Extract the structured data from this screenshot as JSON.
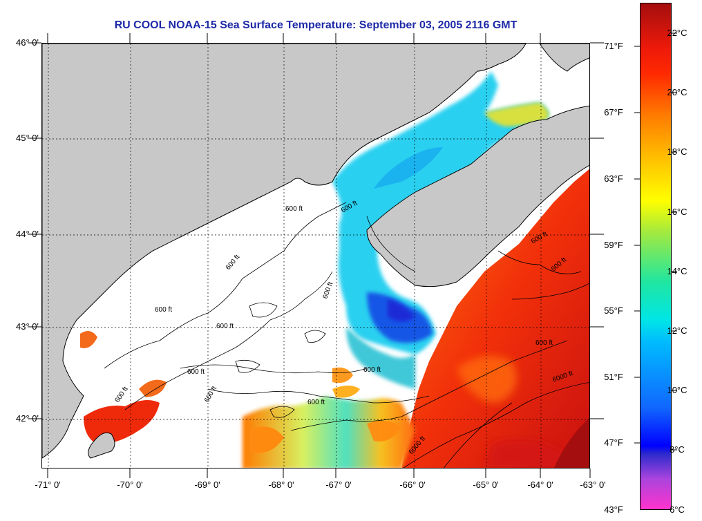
{
  "title": "RU COOL  NOAA-15  Sea Surface Temperature:  September 03, 2005 2116 GMT",
  "lat_labels": [
    "46° 0'",
    "45° 0'",
    "44° 0'",
    "43° 0'",
    "42° 0'"
  ],
  "lon_labels": [
    "-71° 0'",
    "-70° 0'",
    "-69° 0'",
    "-68° 0'",
    "-67° 0'",
    "-66° 0'",
    "-65° 0'",
    "-64° 0'",
    "-63° 0'"
  ],
  "colorbar": {
    "fahrenheit": [
      "71°F",
      "67°F",
      "63°F",
      "59°F",
      "55°F",
      "51°F",
      "47°F",
      "43°F"
    ],
    "celsius": [
      "22°C",
      "20°C",
      "18°C",
      "16°C",
      "14°C",
      "12°C",
      "10°C",
      "8°C",
      "6°C"
    ]
  },
  "contour_labels": [
    "600 ft",
    "600 ft",
    "600 ft",
    "600 ft",
    "600 ft",
    "600 ft",
    "600 ft",
    "600 ft",
    "600 ft",
    "600 ft",
    "600 ft",
    "600 ft",
    "6000 ft",
    "6000 ft",
    "600 ft",
    "600 ft"
  ],
  "colors": {
    "land": "#c8c8c8",
    "cloud": "#ffffff",
    "title": "#1e2aa8",
    "warm": "#ef2a0a",
    "cold": "#1f5ee6"
  }
}
